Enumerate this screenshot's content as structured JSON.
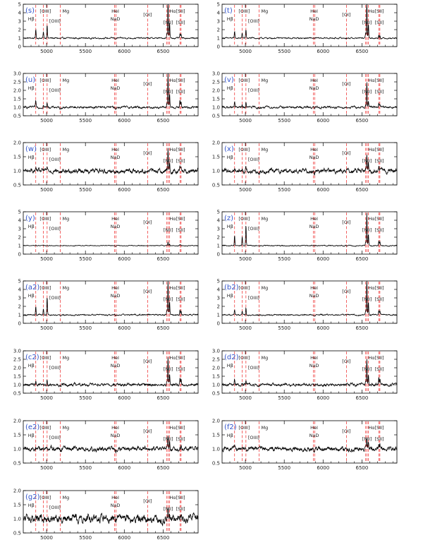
{
  "colors": {
    "panel_label": "#3355cc",
    "line_marker": "#ee2222",
    "spectrum": "#000000",
    "axis": "#000000"
  },
  "line_labels": [
    "Hβ",
    "[OIII]",
    "[OIII]",
    "Mg",
    "HeI",
    "NaD",
    "[OI]",
    "Hα",
    "[NII]",
    "[SII]",
    "[SII]"
  ],
  "chart_data": [
    {
      "type": "line",
      "panel": "(s)",
      "xlim": [
        4700,
        6950
      ],
      "ylim": [
        0,
        5
      ],
      "yticks": [
        0,
        1,
        2,
        3,
        4,
        5
      ],
      "xticks": [
        5000,
        5500,
        6000,
        6500
      ],
      "continuum": 1.0,
      "noise": 0.05,
      "peaks": {
        "hb": 1.0,
        "o3a": 0.7,
        "o3b": 1.6,
        "ha": 4.8,
        "n2": 1.8,
        "s2": 0.5
      }
    },
    {
      "type": "line",
      "panel": "(t)",
      "xlim": [
        4700,
        6950
      ],
      "ylim": [
        0,
        5
      ],
      "yticks": [
        0,
        1,
        2,
        3,
        4,
        5
      ],
      "xticks": [
        5000,
        5500,
        6000,
        6500
      ],
      "continuum": 1.0,
      "noise": 0.05,
      "peaks": {
        "hb": 0.8,
        "o3a": 0.6,
        "o3b": 1.0,
        "ha": 4.5,
        "n2": 1.6,
        "s2": 0.4
      }
    },
    {
      "type": "line",
      "panel": "(u)",
      "xlim": [
        4700,
        6950
      ],
      "ylim": [
        0.5,
        3.0
      ],
      "yticks": [
        0.5,
        1.0,
        1.5,
        2.0,
        2.5,
        3.0
      ],
      "xticks": [
        5000,
        5500,
        6000,
        6500
      ],
      "continuum": 1.0,
      "noise": 0.04,
      "peaks": {
        "hb": 0.35,
        "o3a": 0.15,
        "o3b": 0.3,
        "ha": 2.0,
        "n2": 0.7,
        "s2": 0.4
      }
    },
    {
      "type": "line",
      "panel": "(v)",
      "xlim": [
        4700,
        6950
      ],
      "ylim": [
        0.5,
        3.0
      ],
      "yticks": [
        0.5,
        1.0,
        1.5,
        2.0,
        2.5,
        3.0
      ],
      "xticks": [
        5000,
        5500,
        6000,
        6500
      ],
      "continuum": 1.0,
      "noise": 0.04,
      "peaks": {
        "hb": 0.3,
        "o3a": 0.1,
        "o3b": 0.25,
        "ha": 1.5,
        "n2": 0.4,
        "s2": 0.25
      }
    },
    {
      "type": "line",
      "panel": "(w)",
      "xlim": [
        4700,
        6950
      ],
      "ylim": [
        0.5,
        2.0
      ],
      "yticks": [
        0.5,
        1.0,
        1.5,
        2.0
      ],
      "xticks": [
        5000,
        5500,
        6000,
        6500
      ],
      "continuum": 1.0,
      "noise": 0.05,
      "peaks": {
        "hb": 0.1,
        "o3a": 0.05,
        "o3b": 0.1,
        "ha": 0.75,
        "n2": 0.35,
        "s2": 0.2
      }
    },
    {
      "type": "line",
      "panel": "(x)",
      "xlim": [
        4700,
        6950
      ],
      "ylim": [
        0.5,
        2.0
      ],
      "yticks": [
        0.5,
        1.0,
        1.5,
        2.0
      ],
      "xticks": [
        5000,
        5500,
        6000,
        6500
      ],
      "continuum": 1.0,
      "noise": 0.05,
      "peaks": {
        "hb": 0.1,
        "o3a": 0.05,
        "o3b": 0.1,
        "ha": 0.6,
        "n2": 0.3,
        "s2": 0.15
      }
    },
    {
      "type": "line",
      "panel": "(y)",
      "xlim": [
        4700,
        6950
      ],
      "ylim": [
        0,
        5
      ],
      "yticks": [
        0,
        1,
        2,
        3,
        4,
        5
      ],
      "xticks": [
        5000,
        5500,
        6000,
        6500
      ],
      "continuum": 1.0,
      "noise": 0.03,
      "peaks": {
        "hb": 0.05,
        "o3a": 0.0,
        "o3b": 0.05,
        "ha": 0.4,
        "n2": 0.2,
        "s2": 0.1
      }
    },
    {
      "type": "line",
      "panel": "(z)",
      "xlim": [
        4700,
        6950
      ],
      "ylim": [
        0,
        5
      ],
      "yticks": [
        0,
        1,
        2,
        3,
        4,
        5
      ],
      "xticks": [
        5000,
        5500,
        6000,
        6500
      ],
      "continuum": 1.0,
      "noise": 0.04,
      "peaks": {
        "hb": 1.2,
        "o3a": 1.0,
        "o3b": 2.4,
        "ha": 3.8,
        "n2": 1.3,
        "s2": 0.6
      }
    },
    {
      "type": "line",
      "panel": "(a2)",
      "xlim": [
        4700,
        6950
      ],
      "ylim": [
        0,
        5
      ],
      "yticks": [
        0,
        1,
        2,
        3,
        4,
        5
      ],
      "xticks": [
        5000,
        5500,
        6000,
        6500
      ],
      "continuum": 1.0,
      "noise": 0.05,
      "peaks": {
        "hb": 1.0,
        "o3a": 0.7,
        "o3b": 2.1,
        "ha": 4.0,
        "n2": 1.5,
        "s2": 0.6
      }
    },
    {
      "type": "line",
      "panel": "(b2)",
      "xlim": [
        4700,
        6950
      ],
      "ylim": [
        0,
        5
      ],
      "yticks": [
        0,
        1,
        2,
        3,
        4,
        5
      ],
      "xticks": [
        5000,
        5500,
        6000,
        6500
      ],
      "continuum": 1.0,
      "noise": 0.05,
      "peaks": {
        "hb": 0.6,
        "o3a": 0.4,
        "o3b": 0.8,
        "ha": 4.2,
        "n2": 1.5,
        "s2": 0.5
      }
    },
    {
      "type": "line",
      "panel": "(c2)",
      "xlim": [
        4700,
        6950
      ],
      "ylim": [
        0.5,
        3.0
      ],
      "yticks": [
        0.5,
        1.0,
        1.5,
        2.0,
        2.5,
        3.0
      ],
      "xticks": [
        5000,
        5500,
        6000,
        6500
      ],
      "continuum": 1.0,
      "noise": 0.05,
      "peaks": {
        "hb": 0.3,
        "o3a": 0.1,
        "o3b": 0.25,
        "ha": 1.6,
        "n2": 0.6,
        "s2": 0.4
      }
    },
    {
      "type": "line",
      "panel": "(d2)",
      "xlim": [
        4700,
        6950
      ],
      "ylim": [
        0.5,
        3.0
      ],
      "yticks": [
        0.5,
        1.0,
        1.5,
        2.0,
        2.5,
        3.0
      ],
      "xticks": [
        5000,
        5500,
        6000,
        6500
      ],
      "continuum": 1.0,
      "noise": 0.05,
      "peaks": {
        "hb": 0.25,
        "o3a": 0.1,
        "o3b": 0.2,
        "ha": 1.5,
        "n2": 0.6,
        "s2": 0.4
      }
    },
    {
      "type": "line",
      "panel": "(e2)",
      "xlim": [
        4700,
        6950
      ],
      "ylim": [
        0.5,
        2.0
      ],
      "yticks": [
        0.5,
        1.0,
        1.5,
        2.0
      ],
      "xticks": [
        5000,
        5500,
        6000,
        6500
      ],
      "continuum": 1.0,
      "noise": 0.05,
      "peaks": {
        "hb": 0.05,
        "o3a": 0.0,
        "o3b": 0.05,
        "ha": 0.45,
        "n2": 0.25,
        "s2": 0.15
      }
    },
    {
      "type": "line",
      "panel": "(f2)",
      "xlim": [
        4700,
        6950
      ],
      "ylim": [
        0.5,
        2.0
      ],
      "yticks": [
        0.5,
        1.0,
        1.5,
        2.0
      ],
      "xticks": [
        5000,
        5500,
        6000,
        6500
      ],
      "continuum": 1.0,
      "noise": 0.05,
      "peaks": {
        "hb": 0.05,
        "o3a": 0.0,
        "o3b": 0.05,
        "ha": 0.4,
        "n2": 0.25,
        "s2": 0.15
      }
    },
    {
      "type": "line",
      "panel": "(g2)",
      "xlim": [
        4700,
        6950
      ],
      "ylim": [
        0.5,
        2.0
      ],
      "yticks": [
        0.5,
        1.0,
        1.5,
        2.0
      ],
      "xticks": [
        5000,
        5500,
        6000,
        6500
      ],
      "continuum": 1.0,
      "noise": 0.09,
      "peaks": {
        "hb": 0.05,
        "o3a": 0.0,
        "o3b": 0.05,
        "ha": 0.3,
        "n2": 0.2,
        "s2": 0.1
      }
    }
  ]
}
